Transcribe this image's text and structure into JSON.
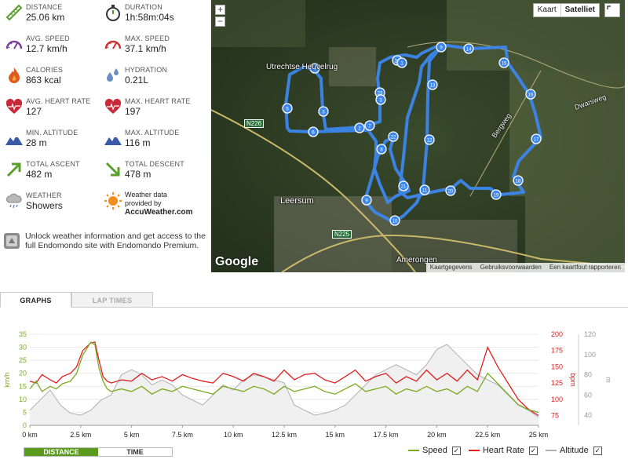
{
  "stats": [
    {
      "id": "distance",
      "label": "DISTANCE",
      "value": "25.06 km",
      "icon": "ruler-icon",
      "color": "#5aa02c"
    },
    {
      "id": "duration",
      "label": "DURATION",
      "value": "1h:58m:04s",
      "icon": "stopwatch-icon",
      "color": "#5aa02c"
    },
    {
      "id": "avg-speed",
      "label": "AVG. SPEED",
      "value": "12.7 km/h",
      "icon": "speedometer-icon",
      "color": "#7b3f9e"
    },
    {
      "id": "max-speed",
      "label": "MAX. SPEED",
      "value": "37.1 km/h",
      "icon": "speedometer-icon",
      "color": "#d03030"
    },
    {
      "id": "calories",
      "label": "CALORIES",
      "value": "863 kcal",
      "icon": "flame-icon",
      "color": "#e05a1a"
    },
    {
      "id": "hydration",
      "label": "HYDRATION",
      "value": "0.21L",
      "icon": "water-drops-icon",
      "color": "#6a8fc8"
    },
    {
      "id": "avg-hr",
      "label": "AVG. HEART RATE",
      "value": "127",
      "icon": "heart-icon",
      "color": "#c82a3a"
    },
    {
      "id": "max-hr",
      "label": "MAX. HEART RATE",
      "value": "197",
      "icon": "heart-icon",
      "color": "#c82a3a"
    },
    {
      "id": "min-alt",
      "label": "MIN. ALTITUDE",
      "value": "28 m",
      "icon": "mountain-icon",
      "color": "#3a5aa8"
    },
    {
      "id": "max-alt",
      "label": "MAX. ALTITUDE",
      "value": "116 m",
      "icon": "mountain-icon",
      "color": "#3a5aa8"
    },
    {
      "id": "total-ascent",
      "label": "TOTAL ASCENT",
      "value": "482 m",
      "icon": "arrow-up-right-icon",
      "color": "#5aa02c"
    },
    {
      "id": "total-descent",
      "label": "TOTAL DESCENT",
      "value": "478 m",
      "icon": "arrow-down-right-icon",
      "color": "#5aa02c"
    },
    {
      "id": "weather",
      "label": "WEATHER",
      "value": "Showers",
      "icon": "rain-cloud-icon",
      "color": "#888888"
    }
  ],
  "weather_provider": {
    "line1": "Weather data",
    "line2": "provided by",
    "brand": "AccuWeather.com"
  },
  "unlock_text": "Unlock weather information and get access to the full Endomondo site with Endomondo Premium.",
  "map": {
    "type_buttons": [
      "Kaart",
      "Satelliet"
    ],
    "zoom_in": "+",
    "zoom_out": "−",
    "places": [
      "Utrechtse Heuvelrug",
      "Leersum",
      "Amerongen",
      "Bergweg",
      "Dwarsweg"
    ],
    "roads": [
      "N226",
      "N225"
    ],
    "logo": "Google",
    "attribution": [
      "Kaartgegevens",
      "Gebruiksvoorwaarden",
      "Een kaartfout rapporteren"
    ],
    "route_color": "#3d86ec"
  },
  "tabs": [
    "GRAPHS",
    "LAP TIMES"
  ],
  "toggle": [
    "DISTANCE",
    "TIME"
  ],
  "legend": [
    {
      "name": "Speed",
      "color": "#7aaa1e",
      "checked": "✓"
    },
    {
      "name": "Heart Rate",
      "color": "#e02020",
      "checked": "✓"
    },
    {
      "name": "Altitude",
      "color": "#b0b0b0",
      "checked": "✓"
    }
  ],
  "chart_data": {
    "type": "line",
    "x_unit": "km",
    "x_ticks": [
      "0 km",
      "2.5 km",
      "5 km",
      "7.5 km",
      "10 km",
      "12.5 km",
      "15 km",
      "17.5 km",
      "20 km",
      "22.5 km",
      "25 km"
    ],
    "xlim": [
      0,
      25
    ],
    "left_axis": {
      "label": "km/h",
      "ticks": [
        0,
        5,
        10,
        15,
        20,
        25,
        30,
        35
      ],
      "range": [
        0,
        35
      ],
      "color": "#7aaa1e"
    },
    "right_axis_1": {
      "label": "bpm",
      "ticks": [
        75,
        100,
        125,
        150,
        175,
        200
      ],
      "range": [
        60,
        200
      ],
      "color": "#e02020"
    },
    "right_axis_2": {
      "label": "m",
      "ticks": [
        40,
        60,
        80,
        100,
        120
      ],
      "range": [
        30,
        120
      ],
      "color": "#999999"
    },
    "series": [
      {
        "name": "Speed",
        "x": [
          0,
          0.3,
          0.6,
          1,
          1.3,
          1.6,
          2,
          2.3,
          2.6,
          3,
          3.2,
          3.4,
          3.6,
          3.8,
          4,
          4.5,
          5,
          5.5,
          6,
          6.5,
          7,
          7.5,
          8,
          8.5,
          9,
          9.5,
          10,
          10.5,
          11,
          11.5,
          12,
          12.5,
          13,
          13.5,
          14,
          14.5,
          15,
          15.5,
          16,
          16.5,
          17,
          17.5,
          18,
          18.5,
          19,
          19.5,
          20,
          20.5,
          21,
          21.5,
          22,
          22.5,
          23,
          23.5,
          24,
          24.5,
          25
        ],
        "values": [
          14,
          17,
          13,
          15,
          14,
          16,
          17,
          20,
          27,
          32,
          31,
          22,
          17,
          14,
          13,
          14,
          13,
          15,
          12,
          14,
          13,
          15,
          14,
          13,
          12,
          15,
          14,
          13,
          15,
          14,
          12,
          15,
          13,
          14,
          15,
          13,
          12,
          14,
          16,
          13,
          14,
          15,
          12,
          14,
          13,
          15,
          13,
          14,
          12,
          15,
          13,
          20,
          16,
          12,
          8,
          6,
          5
        ]
      },
      {
        "name": "Heart Rate",
        "x": [
          0,
          0.3,
          0.6,
          1,
          1.3,
          1.6,
          2,
          2.3,
          2.6,
          3,
          3.2,
          3.4,
          3.6,
          3.8,
          4,
          4.5,
          5,
          5.5,
          6,
          6.5,
          7,
          7.5,
          8,
          8.5,
          9,
          9.5,
          10,
          10.5,
          11,
          11.5,
          12,
          12.5,
          13,
          13.5,
          14,
          14.5,
          15,
          15.5,
          16,
          16.5,
          17,
          17.5,
          18,
          18.5,
          19,
          19.5,
          20,
          20.5,
          21,
          21.5,
          22,
          22.5,
          23,
          23.5,
          24,
          24.5,
          25
        ],
        "values": [
          128,
          125,
          138,
          130,
          125,
          135,
          140,
          150,
          175,
          187,
          188,
          160,
          135,
          128,
          125,
          130,
          128,
          140,
          130,
          135,
          128,
          138,
          132,
          128,
          125,
          140,
          135,
          128,
          140,
          135,
          128,
          145,
          130,
          138,
          140,
          130,
          125,
          135,
          145,
          128,
          135,
          140,
          125,
          135,
          128,
          145,
          130,
          140,
          128,
          145,
          130,
          180,
          150,
          125,
          100,
          85,
          75
        ]
      },
      {
        "name": "Altitude",
        "x": [
          0,
          0.5,
          1,
          1.5,
          2,
          2.5,
          3,
          3.5,
          4,
          4.5,
          5,
          5.5,
          6,
          6.5,
          7,
          7.5,
          8,
          8.5,
          9,
          9.5,
          10,
          10.5,
          11,
          11.5,
          12,
          12.5,
          13,
          13.5,
          14,
          14.5,
          15,
          15.5,
          16,
          16.5,
          17,
          17.5,
          18,
          18.5,
          19,
          19.5,
          20,
          20.5,
          21,
          21.5,
          22,
          22.5,
          23,
          23.5,
          24,
          24.5,
          25
        ],
        "values": [
          45,
          55,
          65,
          50,
          42,
          40,
          45,
          55,
          60,
          80,
          85,
          80,
          70,
          75,
          70,
          60,
          55,
          50,
          60,
          70,
          65,
          75,
          80,
          78,
          75,
          72,
          50,
          45,
          40,
          42,
          45,
          50,
          60,
          70,
          80,
          85,
          90,
          85,
          80,
          90,
          105,
          110,
          100,
          90,
          80,
          75,
          70,
          60,
          50,
          45,
          38
        ]
      }
    ]
  }
}
